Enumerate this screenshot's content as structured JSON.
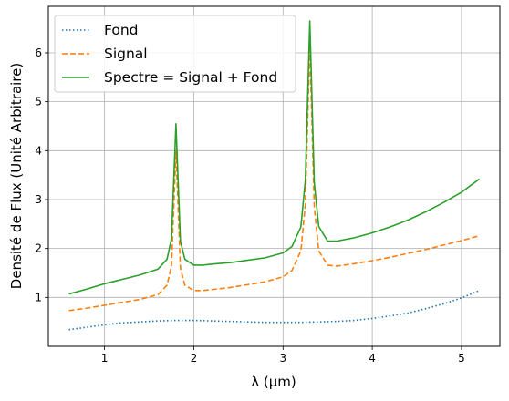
{
  "chart_data": {
    "type": "line",
    "title": "",
    "xlabel": "λ (µm)",
    "ylabel": "Densité de Flux (Unité Arbitraire)",
    "xlim": [
      0.37,
      5.43
    ],
    "ylim": [
      0.0,
      6.95
    ],
    "xticks": [
      1,
      2,
      3,
      4,
      5
    ],
    "yticks": [
      1,
      2,
      3,
      4,
      5,
      6
    ],
    "grid": true,
    "legend": "top-left",
    "series": [
      {
        "name": "Fond",
        "style": "dotted",
        "color": "#1f77b4",
        "x": [
          0.6,
          0.8,
          1.0,
          1.2,
          1.4,
          1.6,
          1.8,
          2.0,
          2.2,
          2.4,
          2.6,
          2.8,
          3.0,
          3.2,
          3.4,
          3.6,
          3.8,
          4.0,
          4.2,
          4.4,
          4.6,
          4.8,
          5.0,
          5.2
        ],
        "y": [
          0.34,
          0.39,
          0.44,
          0.48,
          0.5,
          0.52,
          0.53,
          0.53,
          0.52,
          0.51,
          0.5,
          0.49,
          0.49,
          0.49,
          0.5,
          0.51,
          0.53,
          0.57,
          0.62,
          0.68,
          0.77,
          0.87,
          0.99,
          1.14
        ]
      },
      {
        "name": "Signal",
        "style": "dashed",
        "color": "#ff7f0e",
        "x": [
          0.6,
          0.8,
          1.0,
          1.2,
          1.4,
          1.6,
          1.7,
          1.75,
          1.8,
          1.85,
          1.9,
          2.0,
          2.1,
          2.2,
          2.4,
          2.6,
          2.8,
          3.0,
          3.1,
          3.2,
          3.25,
          3.3,
          3.35,
          3.4,
          3.5,
          3.6,
          3.8,
          4.0,
          4.2,
          4.4,
          4.6,
          4.8,
          5.0,
          5.2
        ],
        "y": [
          0.73,
          0.78,
          0.84,
          0.9,
          0.96,
          1.06,
          1.25,
          1.65,
          4.0,
          1.6,
          1.25,
          1.14,
          1.14,
          1.16,
          1.2,
          1.26,
          1.32,
          1.42,
          1.55,
          1.95,
          2.9,
          6.15,
          2.85,
          1.95,
          1.66,
          1.64,
          1.69,
          1.75,
          1.82,
          1.9,
          1.98,
          2.07,
          2.16,
          2.26
        ]
      },
      {
        "name": "Spectre = Signal + Fond",
        "style": "solid",
        "color": "#2ca02c",
        "x": [
          0.6,
          0.8,
          1.0,
          1.2,
          1.4,
          1.6,
          1.7,
          1.75,
          1.8,
          1.85,
          1.9,
          2.0,
          2.1,
          2.2,
          2.4,
          2.6,
          2.8,
          3.0,
          3.1,
          3.2,
          3.25,
          3.3,
          3.35,
          3.4,
          3.5,
          3.6,
          3.8,
          4.0,
          4.2,
          4.4,
          4.6,
          4.8,
          5.0,
          5.2
        ],
        "y": [
          1.07,
          1.17,
          1.28,
          1.37,
          1.46,
          1.58,
          1.78,
          2.2,
          4.55,
          2.15,
          1.78,
          1.66,
          1.66,
          1.68,
          1.71,
          1.76,
          1.81,
          1.91,
          2.04,
          2.44,
          3.4,
          6.65,
          3.35,
          2.45,
          2.15,
          2.15,
          2.22,
          2.32,
          2.44,
          2.58,
          2.75,
          2.94,
          3.15,
          3.42
        ]
      }
    ]
  }
}
